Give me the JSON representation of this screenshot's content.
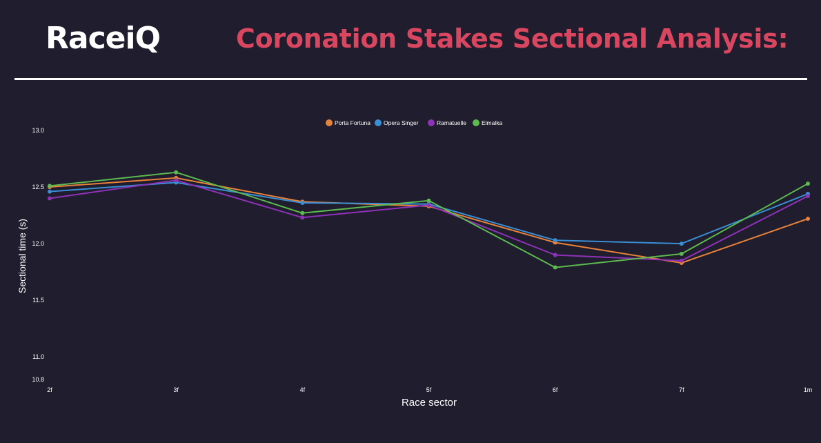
{
  "header": {
    "logo_text": "RaceiQ",
    "title": "Coronation Stakes Sectional Analysis:"
  },
  "colors": {
    "background": "#1f1d2e",
    "title": "#d9465f",
    "text": "#ffffff"
  },
  "chart_data": {
    "type": "line",
    "title": "",
    "xlabel": "Race sector",
    "ylabel": "Sectional time (s)",
    "categories": [
      "2f",
      "3f",
      "4f",
      "5f",
      "6f",
      "7f",
      "1m"
    ],
    "ylim": [
      10.8,
      13.0
    ],
    "yticks": [
      "13.0",
      "12.5",
      "12.0",
      "11.5",
      "11.0",
      "10.8"
    ],
    "legend_position": "top-center",
    "grid": false,
    "series": [
      {
        "name": "Porta Fortuna",
        "color": "#e8823a",
        "values": [
          12.5,
          12.58,
          12.37,
          12.33,
          12.01,
          11.83,
          12.22
        ]
      },
      {
        "name": "Opera Singer",
        "color": "#3a8fd4",
        "values": [
          12.46,
          12.54,
          12.36,
          12.35,
          12.03,
          12.0,
          12.44
        ]
      },
      {
        "name": "Ramatuelle",
        "color": "#8e32b8",
        "values": [
          12.4,
          12.56,
          12.23,
          12.34,
          11.9,
          11.85,
          12.42
        ]
      },
      {
        "name": "Elmalka",
        "color": "#5cba4e",
        "values": [
          12.51,
          12.63,
          12.27,
          12.38,
          11.79,
          11.91,
          12.53
        ]
      }
    ]
  }
}
